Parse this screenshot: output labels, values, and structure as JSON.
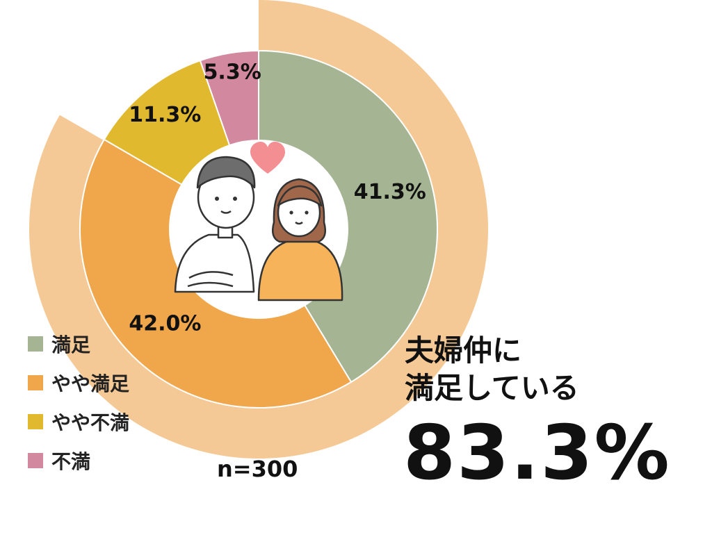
{
  "chart_data": {
    "type": "pie",
    "categories": [
      "満足",
      "やや満足",
      "やや不満",
      "不満"
    ],
    "values": [
      41.3,
      42.0,
      11.3,
      5.3
    ],
    "value_labels": [
      "41.3%",
      "42.0%",
      "11.3%",
      "5.3%"
    ],
    "colors": [
      "#a5b594",
      "#f0a64a",
      "#e1b92e",
      "#d2889e"
    ],
    "outer_ring": {
      "value": 83.3,
      "color": "#f5c995"
    },
    "legend_position": "bottom-left"
  },
  "legend": [
    {
      "label": "満足",
      "color": "#a5b594"
    },
    {
      "label": "やや満足",
      "color": "#f0a64a"
    },
    {
      "label": "やや不満",
      "color": "#e1b92e"
    },
    {
      "label": "不満",
      "color": "#d2889e"
    }
  ],
  "sample_size": "n=300",
  "headline": {
    "line1": "夫婦仲に",
    "line2": "満足している"
  },
  "big_value": "83.3%",
  "illustration": {
    "icon": "couple-icon",
    "heart_icon": "heart-icon"
  }
}
